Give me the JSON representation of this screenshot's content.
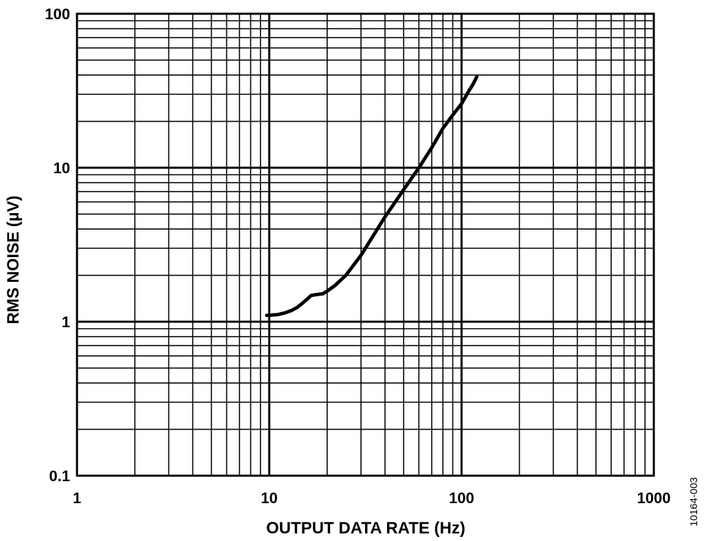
{
  "chart_data": {
    "type": "line",
    "title": "",
    "xlabel": "OUTPUT DATA RATE (Hz)",
    "ylabel": "RMS NOISE (µV)",
    "x_scale": "log",
    "y_scale": "log",
    "xlim": [
      1,
      1000
    ],
    "ylim": [
      0.1,
      100
    ],
    "x_tick_labels": [
      "1",
      "10",
      "100",
      "1000"
    ],
    "y_tick_labels": [
      "0.1",
      "1",
      "10",
      "100"
    ],
    "grid": true,
    "legend": "none",
    "figure_id": "10164-003",
    "series": [
      {
        "color": "#000000",
        "points": [
          [
            9.7,
            1.1
          ],
          [
            11,
            1.11
          ],
          [
            12,
            1.14
          ],
          [
            13,
            1.18
          ],
          [
            14,
            1.24
          ],
          [
            15,
            1.33
          ],
          [
            16.5,
            1.48
          ],
          [
            17.5,
            1.5
          ],
          [
            19,
            1.52
          ],
          [
            20,
            1.58
          ],
          [
            22,
            1.72
          ],
          [
            25,
            2.0
          ],
          [
            30,
            2.7
          ],
          [
            40,
            4.8
          ],
          [
            50,
            7.2
          ],
          [
            60,
            10.0
          ],
          [
            70,
            13.5
          ],
          [
            80,
            18.0
          ],
          [
            90,
            22.0
          ],
          [
            100,
            26.0
          ],
          [
            110,
            32.0
          ],
          [
            115,
            35.0
          ],
          [
            120,
            39.0
          ]
        ]
      }
    ]
  }
}
